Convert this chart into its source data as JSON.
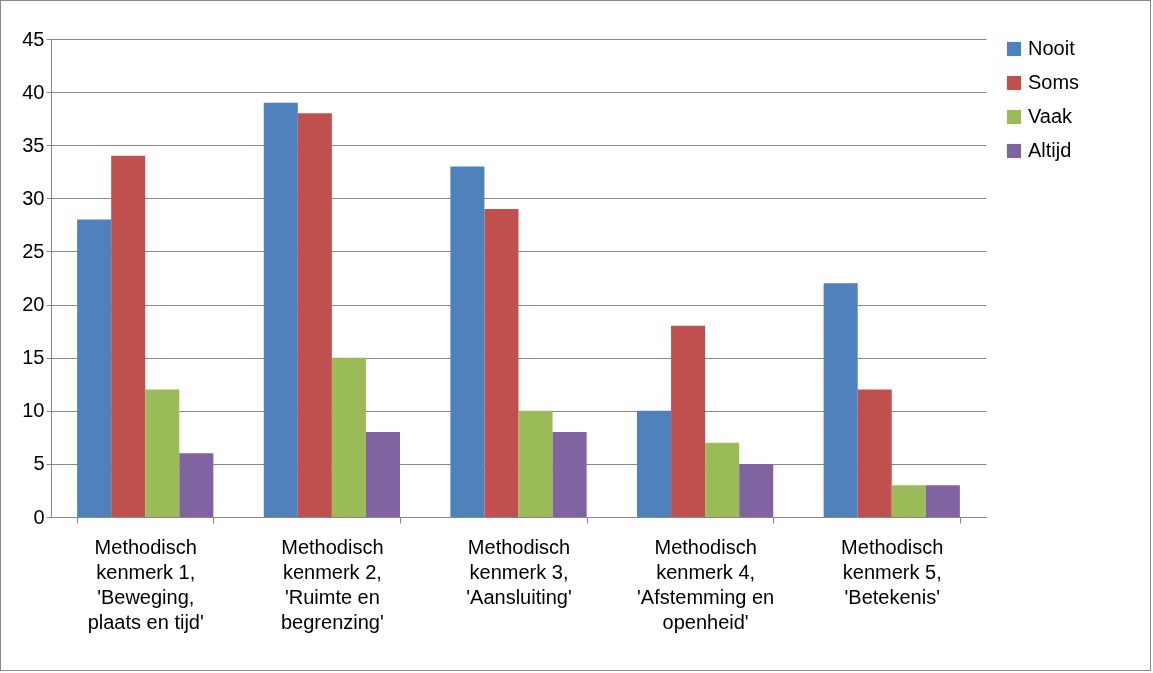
{
  "chart_data": {
    "type": "bar",
    "categories": [
      "Methodisch kenmerk 1, 'Beweging, plaats en tijd'",
      "Methodisch kenmerk 2, 'Ruimte en begrenzing'",
      "Methodisch kenmerk 3, 'Aansluiting'",
      "Methodisch kenmerk 4, 'Afstemming en openheid'",
      "Methodisch kenmerk 5, 'Betekenis'"
    ],
    "series": [
      {
        "name": "Nooit",
        "color": "#4f81bd",
        "values": [
          28,
          39,
          33,
          10,
          22
        ]
      },
      {
        "name": "Soms",
        "color": "#c0504d",
        "values": [
          34,
          38,
          29,
          18,
          12
        ]
      },
      {
        "name": "Vaak",
        "color": "#9bbb59",
        "values": [
          12,
          15,
          10,
          7,
          3
        ]
      },
      {
        "name": "Altijd",
        "color": "#8064a2",
        "values": [
          6,
          8,
          8,
          5,
          3
        ]
      }
    ],
    "ylim": [
      0,
      45
    ],
    "yticks": [
      0,
      5,
      10,
      15,
      20,
      25,
      30,
      35,
      40,
      45
    ],
    "grid": "y",
    "legend": "right"
  }
}
